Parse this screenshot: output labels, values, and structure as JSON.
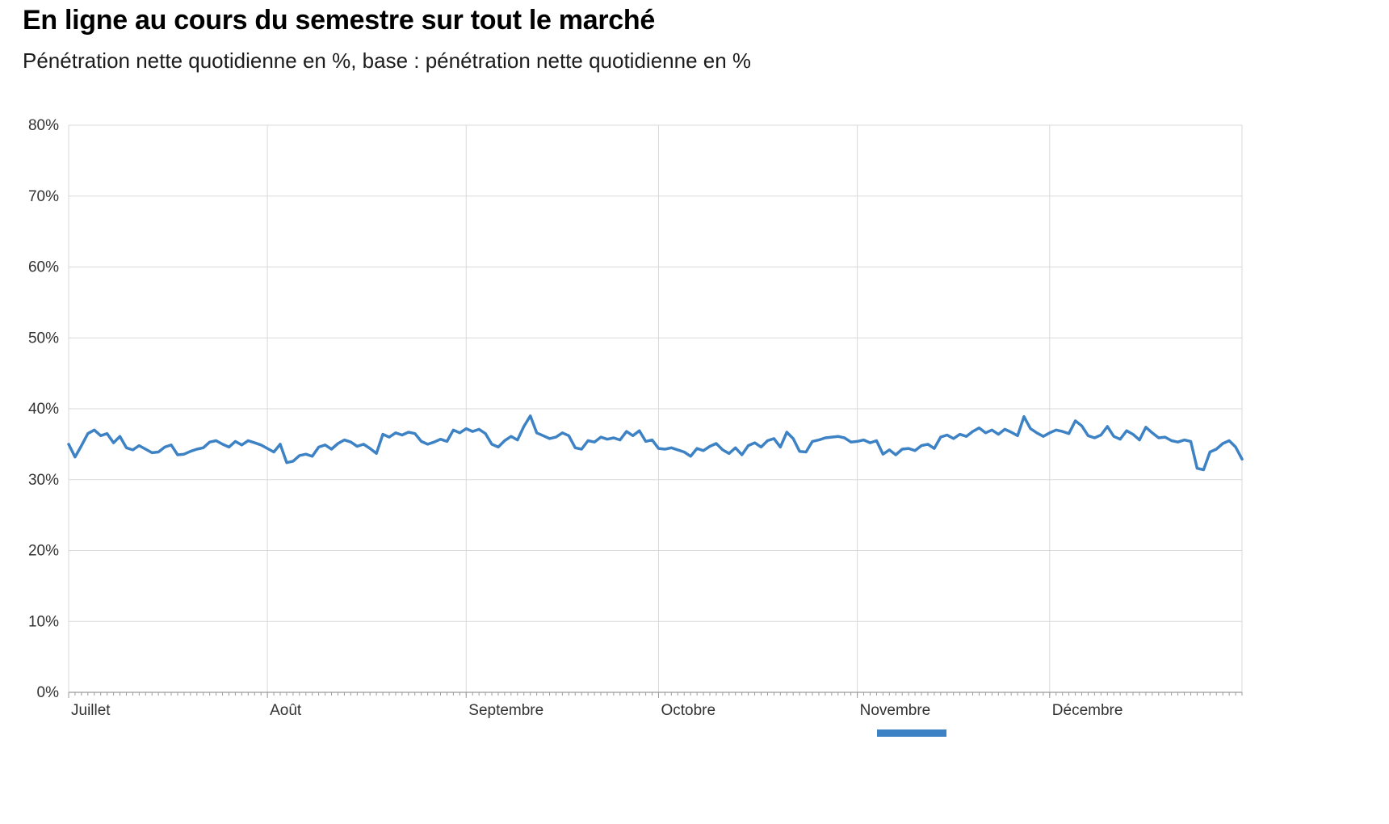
{
  "header": {
    "title": "En ligne au cours du semestre sur tout le marché",
    "subtitle": "Pénétration nette quotidienne en %, base : pénétration nette quotidienne en %"
  },
  "colors": {
    "line": "#3d82c4",
    "grid": "#d9d9d9",
    "axis": "#9b9b9b",
    "tick": "#9b9b9b",
    "label": "#333333",
    "accent_bar": "#3d82c4"
  },
  "chart_data": {
    "type": "line",
    "title": "En ligne au cours du semestre sur tout le marché",
    "subtitle": "Pénétration nette quotidienne en %, base : pénétration nette quotidienne en %",
    "xlabel": "",
    "ylabel": "Pénétration nette quotidienne en %",
    "ylim": [
      0,
      80
    ],
    "grid": true,
    "legend": "none",
    "y_ticks": [
      {
        "value": 0,
        "label": "0%"
      },
      {
        "value": 10,
        "label": "10%"
      },
      {
        "value": 20,
        "label": "20%"
      },
      {
        "value": 30,
        "label": "30%"
      },
      {
        "value": 40,
        "label": "40%"
      },
      {
        "value": 50,
        "label": "50%"
      },
      {
        "value": 60,
        "label": "60%"
      },
      {
        "value": 70,
        "label": "70%"
      },
      {
        "value": 80,
        "label": "80%"
      }
    ],
    "x_months": [
      {
        "label": "Juillet",
        "start_day": 0
      },
      {
        "label": "Août",
        "start_day": 31
      },
      {
        "label": "Septembre",
        "start_day": 62
      },
      {
        "label": "Octobre",
        "start_day": 92
      },
      {
        "label": "Novembre",
        "start_day": 123
      },
      {
        "label": "Décembre",
        "start_day": 153
      }
    ],
    "n_days": 184,
    "series_name": "Pénétration nette quotidienne en %",
    "values": [
      35.0,
      33.2,
      34.8,
      36.5,
      37.0,
      36.2,
      36.5,
      35.2,
      36.1,
      34.5,
      34.2,
      34.8,
      34.3,
      33.8,
      33.9,
      34.6,
      34.9,
      33.5,
      33.6,
      34.0,
      34.3,
      34.5,
      35.3,
      35.5,
      35.0,
      34.6,
      35.4,
      34.9,
      35.5,
      35.2,
      34.9,
      34.4,
      33.9,
      35.0,
      32.4,
      32.6,
      33.4,
      33.6,
      33.3,
      34.6,
      34.9,
      34.3,
      35.1,
      35.6,
      35.3,
      34.7,
      35.0,
      34.4,
      33.7,
      36.4,
      36.0,
      36.6,
      36.3,
      36.7,
      36.5,
      35.4,
      35.0,
      35.3,
      35.7,
      35.4,
      37.0,
      36.6,
      37.2,
      36.8,
      37.1,
      36.5,
      35.0,
      34.6,
      35.5,
      36.1,
      35.6,
      37.5,
      39.0,
      36.6,
      36.2,
      35.8,
      36.0,
      36.6,
      36.2,
      34.5,
      34.3,
      35.5,
      35.3,
      36.0,
      35.7,
      35.9,
      35.6,
      36.8,
      36.2,
      36.9,
      35.4,
      35.6,
      34.4,
      34.3,
      34.5,
      34.2,
      33.9,
      33.3,
      34.4,
      34.1,
      34.7,
      35.1,
      34.2,
      33.7,
      34.5,
      33.5,
      34.8,
      35.2,
      34.6,
      35.5,
      35.8,
      34.6,
      36.7,
      35.8,
      34.0,
      33.9,
      35.4,
      35.6,
      35.9,
      36.0,
      36.1,
      35.9,
      35.3,
      35.4,
      35.6,
      35.2,
      35.5,
      33.6,
      34.2,
      33.5,
      34.3,
      34.4,
      34.1,
      34.8,
      35.0,
      34.4,
      36.0,
      36.3,
      35.8,
      36.4,
      36.1,
      36.8,
      37.3,
      36.6,
      37.0,
      36.4,
      37.1,
      36.7,
      36.2,
      38.9,
      37.2,
      36.6,
      36.1,
      36.6,
      37.0,
      36.8,
      36.5,
      38.3,
      37.6,
      36.2,
      35.9,
      36.3,
      37.5,
      36.1,
      35.7,
      36.9,
      36.4,
      35.6,
      37.4,
      36.6,
      35.9,
      36.0,
      35.5,
      35.3,
      35.6,
      35.4,
      31.6,
      31.4,
      33.9,
      34.3,
      35.1,
      35.5,
      34.6,
      32.9
    ]
  }
}
